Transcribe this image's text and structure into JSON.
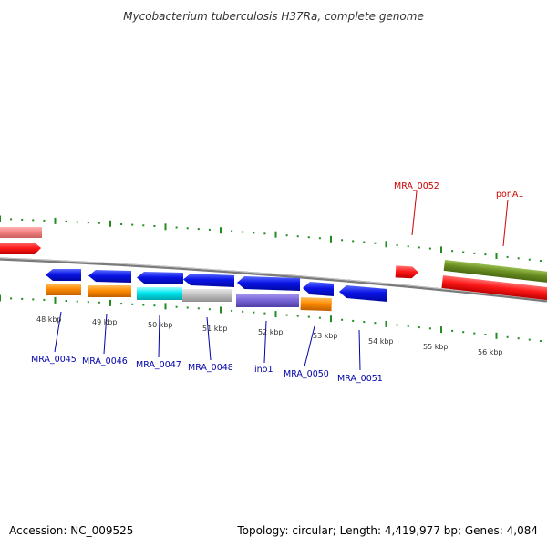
{
  "title": "Mycobacterium tuberculosis H37Ra, complete genome",
  "footer": {
    "accession": "Accession: NC_009525",
    "topology": "Topology: circular; Length: 4,419,977 bp; Genes: 4,084"
  },
  "colors": {
    "forward_label": "#cc0000",
    "reverse_label": "#0000aa",
    "tick": "#228b22",
    "backbone": "#808080",
    "blue_gene": "#0a14e6",
    "red_gene": "#ff1a1a",
    "orange_gene": "#ff8c00",
    "cyan_gene": "#00e5ee",
    "grey_gene": "#c0c0c0",
    "purple_gene": "#7b68d8",
    "olive_gene": "#6b8e23",
    "pink_gene": "#f08080"
  },
  "scale": {
    "labels": [
      "48 kbp",
      "49 kbp",
      "50 kbp",
      "51 kbp",
      "52 kbp",
      "53 kbp",
      "54 kbp",
      "55 kbp",
      "56 kbp"
    ]
  },
  "forward_labels": [
    "MRA_0052",
    "ponA1"
  ],
  "reverse_labels": [
    "MRA_0045",
    "MRA_0046",
    "MRA_0047",
    "MRA_0048",
    "ino1",
    "MRA_0050",
    "MRA_0051"
  ]
}
